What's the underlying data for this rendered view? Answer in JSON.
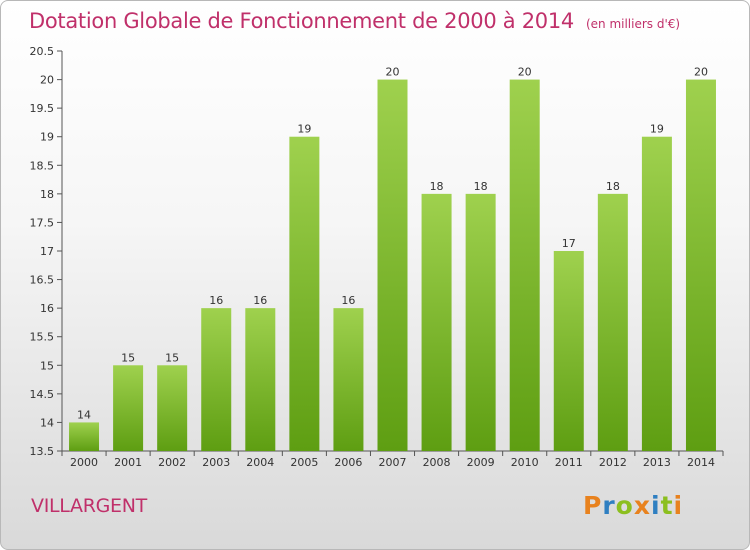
{
  "header": {
    "title": "Dotation Globale de Fonctionnement de 2000 à 2014",
    "unit": "(en milliers d'€)"
  },
  "footer": {
    "commune": "VILLARGENT",
    "logo_text": "Proxiti"
  },
  "colors": {
    "title": "#c0306a",
    "bar_light": "#9fd14e",
    "bar_dark": "#5e9e12",
    "logo": [
      "#e8821e",
      "#2f7fc1",
      "#8cbf1f",
      "#e8821e",
      "#2f7fc1",
      "#8cbf1f",
      "#e8821e"
    ]
  },
  "chart_data": {
    "type": "bar",
    "categories": [
      "2000",
      "2001",
      "2002",
      "2003",
      "2004",
      "2005",
      "2006",
      "2007",
      "2008",
      "2009",
      "2010",
      "2011",
      "2012",
      "2013",
      "2014"
    ],
    "values": [
      14,
      15,
      15,
      16,
      16,
      19,
      16,
      20,
      18,
      18,
      20,
      17,
      18,
      19,
      20
    ],
    "data_labels": [
      "14",
      "15",
      "15",
      "16",
      "16",
      "19",
      "16",
      "20",
      "18",
      "18",
      "20",
      "17",
      "18",
      "19",
      "20"
    ],
    "y_ticks": [
      "13.5",
      "14",
      "14.5",
      "15",
      "15.5",
      "16",
      "16.5",
      "17",
      "17.5",
      "18",
      "18.5",
      "19",
      "19.5",
      "20",
      "20.5"
    ],
    "ylim": [
      13.5,
      20.5
    ],
    "grid": false,
    "legend": "none"
  }
}
